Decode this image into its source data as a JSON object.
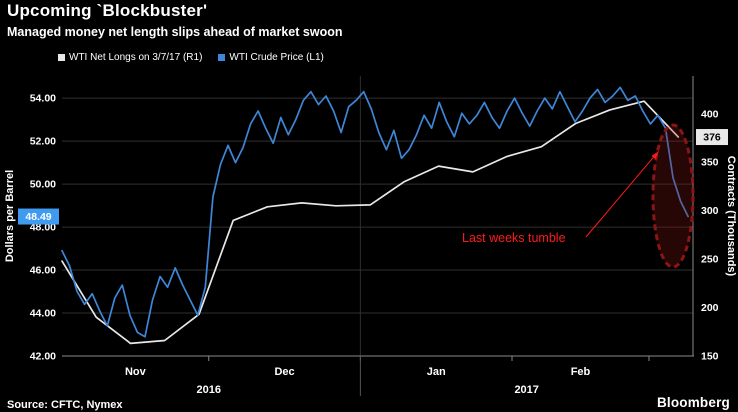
{
  "header": {
    "title": "Upcoming `Blockbuster'",
    "subtitle": "Managed money net length slips ahead of market swoon"
  },
  "legend": {
    "items": [
      {
        "label": "WTI Net Longs on 3/7/17 (R1)",
        "color": "#e8e8e8"
      },
      {
        "label": "WTI Crude Price (L1)",
        "color": "#3e86d8"
      }
    ]
  },
  "footer": {
    "source": "Source: CFTC, Nymex",
    "brand": "Bloomberg"
  },
  "chart_data": {
    "type": "line",
    "title": "Upcoming `Blockbuster'",
    "subtitle": "Managed money net length slips ahead of market swoon",
    "background": "#000000",
    "x_domain": [
      0,
      129
    ],
    "x_axis": {
      "months": [
        {
          "label": "Nov",
          "day": 15
        },
        {
          "label": "Dec",
          "day": 45.5
        },
        {
          "label": "Jan",
          "day": 76.5
        },
        {
          "label": "Feb",
          "day": 106
        }
      ],
      "years": [
        {
          "label": "2016",
          "day": 30
        },
        {
          "label": "2017",
          "day": 95
        }
      ],
      "tick_days": [
        30,
        61,
        92,
        120
      ],
      "gridline_days": [
        61
      ],
      "year_divider_day": 61
    },
    "left_axis": {
      "title": "Dollars per Barrel",
      "ticks": [
        42,
        44,
        46,
        48,
        50,
        52,
        54
      ],
      "labels": [
        "42.00",
        "44.00",
        "46.00",
        "48.00",
        "50.00",
        "52.00",
        "54.00"
      ],
      "domain": [
        42,
        55.03
      ]
    },
    "right_axis": {
      "title": "Contracts (Thousands)",
      "ticks": [
        150,
        200,
        250,
        300,
        350,
        400
      ],
      "labels": [
        "150",
        "200",
        "250",
        "300",
        "350",
        "400"
      ],
      "domain": [
        150,
        439
      ]
    },
    "series": [
      {
        "name": "WTI Net Longs on 3/7/17 (R1)",
        "axis": "right",
        "color": "#e8e8e8",
        "x_days": [
          0,
          7,
          14,
          21,
          28,
          35,
          42,
          49,
          56,
          63,
          70,
          77,
          84,
          91,
          98,
          105,
          112,
          119,
          126
        ],
        "values": [
          248,
          190,
          163,
          166,
          193,
          290,
          304,
          308,
          305,
          306,
          330,
          346,
          340,
          356,
          366,
          390,
          404,
          413,
          376
        ],
        "badge": {
          "label": "376",
          "side": "right",
          "value": 376,
          "bg": "#e8e8e8",
          "fg": "#000000"
        }
      },
      {
        "name": "WTI Crude Price (L1)",
        "axis": "left",
        "color": "#3e86d8",
        "x_range": [
          0,
          128
        ],
        "values": [
          46.9,
          46.2,
          45.0,
          44.4,
          44.9,
          44.1,
          43.4,
          44.7,
          45.3,
          43.9,
          43.1,
          42.9,
          44.6,
          45.7,
          45.2,
          46.1,
          45.3,
          44.6,
          43.9,
          45.2,
          49.4,
          50.9,
          51.8,
          51.0,
          51.7,
          52.8,
          53.4,
          52.6,
          51.9,
          53.1,
          52.3,
          53.0,
          53.9,
          54.3,
          53.7,
          54.1,
          53.4,
          52.4,
          53.6,
          53.9,
          54.3,
          53.5,
          52.4,
          51.6,
          52.5,
          51.2,
          51.6,
          52.3,
          53.2,
          52.6,
          53.8,
          52.9,
          52.2,
          53.3,
          52.8,
          53.2,
          53.8,
          53.1,
          52.6,
          53.4,
          54.0,
          53.3,
          52.7,
          53.4,
          54.0,
          53.5,
          54.3,
          53.6,
          52.9,
          53.4,
          54.0,
          54.4,
          53.8,
          54.1,
          54.5,
          53.9,
          54.1,
          53.4,
          52.8,
          53.2,
          52.6,
          50.3,
          49.2,
          48.49
        ],
        "badge": {
          "label": "48.49",
          "side": "left",
          "value": 48.49,
          "bg": "#3e9bf0",
          "fg": "#ffffff"
        }
      }
    ],
    "annotation": {
      "text": "Last weeks tumble",
      "color": "#ff1a1a"
    },
    "highlight_ellipse": {
      "color": "#8b1515",
      "fill": "rgba(139,21,21,0.28)"
    }
  }
}
